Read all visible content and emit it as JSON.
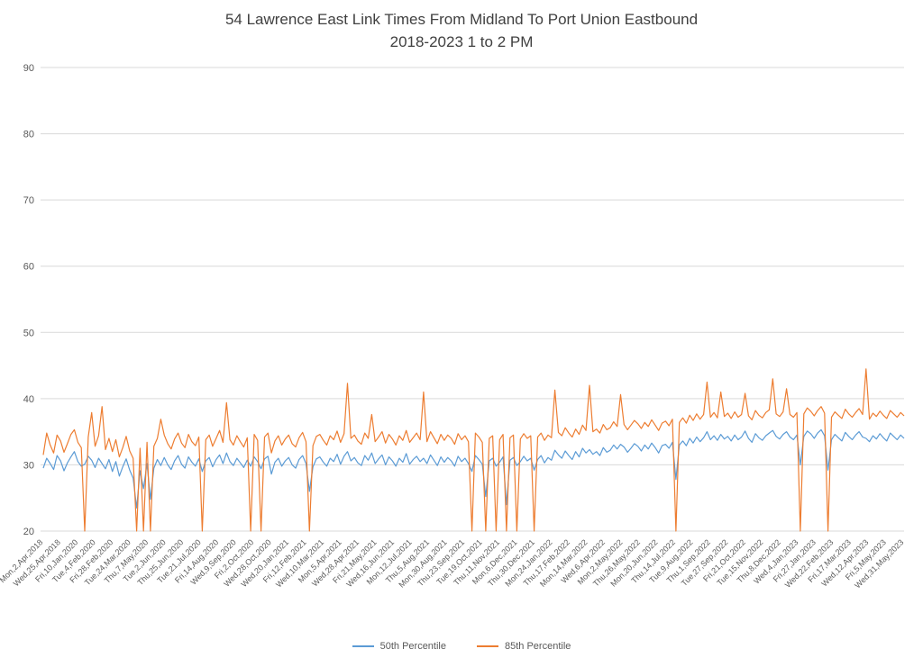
{
  "chart_data": {
    "type": "line",
    "title": "54 Lawrence East Link Times From Midland To Port Union Eastbound",
    "subtitle": "2018-2023 1 to 2 PM",
    "xlabel": "",
    "ylabel": "",
    "ylim": [
      20,
      90
    ],
    "yticks": [
      20,
      30,
      40,
      50,
      60,
      70,
      80,
      90
    ],
    "grid": true,
    "legend_position": "bottom",
    "colors": {
      "p50": "#5B9BD5",
      "p85": "#ED7D31",
      "gridline": "#D9D9D9",
      "axis_text": "#595959",
      "title_text": "#404040"
    },
    "x_tick_labels": [
      "Mon,2,Apr,2018",
      "Wed,25,Apr,2018",
      "Fri,10,Jan,2020",
      "Tue,4,Feb,2020",
      "Fri,28,Feb,2020",
      "Tue,24,Mar,2020",
      "Thu,7,May,2020",
      "Tue,2,Jun,2020",
      "Thu,25,Jun,2020",
      "Tue,21,Jul,2020",
      "Fri,14,Aug,2020",
      "Wed,9,Sep,2020",
      "Fri,2,Oct,2020",
      "Wed,28,Oct,2020",
      "Wed,20,Jan,2021",
      "Fri,12,Feb,2021",
      "Wed,10,Mar,2021",
      "Mon,5,Apr,2021",
      "Wed,28,Apr,2021",
      "Fri,21,May,2021",
      "Wed,16,Jun,2021",
      "Mon,12,Jul,2021",
      "Thu,5,Aug,2021",
      "Mon,30,Aug,2021",
      "Thu,23,Sep,2021",
      "Tue,19,Oct,2021",
      "Thu,11,Nov,2021",
      "Mon,6,Dec,2021",
      "Thu,30,Dec,2021",
      "Mon,24,Jan,2022",
      "Thu,17,Feb,2022",
      "Mon,14,Mar,2022",
      "Wed,6,Apr,2022",
      "Mon,2,May,2022",
      "Thu,26,May,2022",
      "Mon,20,Jun,2022",
      "Thu,14,Jul,2022",
      "Tue,9,Aug,2022",
      "Thu,1,Sep,2022",
      "Tue,27,Sep,2022",
      "Fri,21,Oct,2022",
      "Tue,15,Nov,2022",
      "Thu,8,Dec,2022",
      "Wed,4,Jan,2023",
      "Fri,27,Jan,2023",
      "Wed,22,Feb,2023",
      "Fri,17,Mar,2023",
      "Wed,12,Apr,2023",
      "Fri,5,May,2023",
      "Wed,31,May,2023"
    ],
    "series": [
      {
        "name": "50th Percentile",
        "color_key": "p50",
        "values": [
          29.5,
          31.0,
          30.2,
          29.3,
          31.4,
          30.6,
          29.1,
          30.3,
          31.2,
          32.0,
          30.5,
          29.8,
          30.1,
          31.3,
          30.7,
          29.6,
          31.0,
          30.2,
          29.4,
          30.8,
          29.0,
          30.5,
          28.3,
          29.7,
          30.9,
          29.2,
          28.0,
          23.5,
          29.1,
          26.4,
          30.2,
          24.8,
          29.5,
          30.8,
          29.9,
          31.1,
          30.0,
          29.3,
          30.6,
          31.4,
          30.1,
          29.5,
          31.2,
          30.4,
          29.8,
          30.9,
          29.0,
          30.6,
          31.1,
          29.7,
          30.8,
          31.5,
          30.2,
          31.8,
          30.5,
          29.9,
          31.0,
          30.3,
          29.6,
          30.7,
          29.8,
          31.2,
          30.5,
          29.4,
          30.9,
          31.3,
          28.6,
          30.4,
          31.0,
          29.8,
          30.6,
          31.1,
          30.0,
          29.5,
          30.8,
          31.4,
          30.2,
          26.0,
          29.7,
          30.9,
          31.2,
          30.4,
          29.8,
          31.0,
          30.5,
          31.6,
          30.1,
          31.3,
          32.0,
          30.6,
          31.1,
          30.3,
          29.9,
          31.4,
          30.7,
          31.8,
          30.2,
          30.9,
          31.5,
          30.0,
          31.2,
          30.6,
          29.8,
          31.0,
          30.4,
          31.7,
          30.1,
          30.8,
          31.3,
          30.5,
          31.0,
          30.2,
          31.5,
          30.7,
          29.9,
          31.2,
          30.4,
          31.1,
          30.6,
          29.8,
          31.3,
          30.5,
          31.0,
          30.2,
          29.0,
          31.4,
          30.8,
          30.1,
          25.2,
          30.6,
          31.0,
          29.8,
          30.4,
          31.2,
          24.0,
          30.7,
          31.1,
          29.9,
          30.5,
          31.3,
          30.6,
          31.0,
          29.2,
          30.8,
          31.4,
          30.3,
          31.1,
          30.7,
          32.2,
          31.5,
          31.0,
          32.1,
          31.4,
          30.8,
          32.0,
          31.2,
          32.5,
          31.8,
          32.3,
          31.6,
          32.0,
          31.4,
          32.6,
          31.9,
          32.2,
          33.0,
          32.4,
          33.1,
          32.7,
          31.9,
          32.5,
          33.2,
          32.8,
          32.1,
          33.0,
          32.4,
          33.3,
          32.6,
          31.8,
          32.9,
          33.1,
          32.5,
          33.4,
          27.8,
          33.0,
          33.6,
          32.9,
          34.0,
          33.3,
          34.2,
          33.5,
          34.1,
          35.0,
          33.8,
          34.4,
          33.7,
          34.6,
          33.9,
          34.3,
          33.6,
          34.5,
          33.8,
          34.2,
          35.1,
          34.0,
          33.4,
          34.7,
          34.1,
          33.7,
          34.4,
          34.8,
          35.2,
          34.3,
          33.9,
          34.6,
          35.0,
          34.2,
          33.8,
          34.5,
          30.0,
          34.3,
          35.1,
          34.7,
          34.0,
          34.8,
          35.3,
          34.4,
          29.2,
          33.8,
          34.6,
          34.1,
          33.6,
          34.9,
          34.3,
          33.8,
          34.5,
          35.0,
          34.2,
          34.0,
          33.5,
          34.4,
          33.9,
          34.7,
          34.1,
          33.6,
          34.8,
          34.3,
          33.8,
          34.5,
          34.0
        ]
      },
      {
        "name": "85th Percentile",
        "color_key": "p85",
        "values": [
          31.5,
          34.8,
          33.0,
          31.8,
          34.5,
          33.6,
          31.9,
          33.2,
          34.6,
          35.3,
          33.4,
          32.6,
          20.0,
          34.2,
          37.9,
          32.8,
          34.4,
          38.8,
          32.3,
          34.0,
          32.0,
          33.8,
          31.2,
          32.6,
          34.3,
          32.1,
          31.0,
          20.0,
          32.5,
          20.0,
          33.4,
          20.0,
          32.8,
          34.0,
          36.9,
          34.5,
          33.2,
          32.4,
          33.9,
          34.8,
          33.3,
          32.6,
          34.6,
          33.5,
          32.9,
          34.2,
          20.0,
          33.8,
          34.5,
          32.8,
          34.0,
          35.2,
          33.4,
          39.4,
          33.8,
          33.0,
          34.4,
          33.5,
          32.7,
          34.1,
          20.0,
          34.6,
          33.7,
          20.0,
          34.2,
          34.8,
          31.8,
          33.6,
          34.4,
          33.0,
          33.9,
          34.5,
          33.2,
          32.7,
          34.1,
          34.9,
          33.5,
          20.0,
          32.9,
          34.3,
          34.6,
          33.7,
          33.0,
          34.4,
          33.8,
          35.1,
          33.4,
          34.7,
          42.3,
          34.0,
          34.5,
          33.6,
          33.1,
          34.8,
          34.0,
          37.6,
          33.5,
          34.2,
          35.0,
          33.3,
          34.6,
          33.9,
          33.0,
          34.4,
          33.7,
          35.2,
          33.4,
          34.1,
          34.8,
          33.8,
          41.0,
          33.5,
          35.0,
          34.1,
          33.2,
          34.6,
          33.7,
          34.5,
          34.0,
          33.1,
          34.7,
          33.8,
          34.4,
          33.5,
          20.0,
          34.8,
          34.2,
          33.4,
          20.0,
          34.0,
          34.4,
          20.0,
          33.8,
          34.6,
          20.0,
          34.1,
          34.5,
          20.0,
          33.9,
          34.7,
          34.0,
          34.4,
          20.0,
          34.2,
          34.8,
          33.7,
          34.5,
          34.1,
          41.3,
          34.9,
          34.4,
          35.6,
          34.8,
          34.2,
          35.4,
          34.6,
          36.0,
          35.2,
          42.0,
          35.0,
          35.4,
          34.8,
          36.1,
          35.3,
          35.6,
          36.5,
          35.8,
          40.6,
          36.1,
          35.3,
          36.0,
          36.7,
          36.2,
          35.5,
          36.4,
          35.8,
          36.8,
          36.0,
          35.2,
          36.3,
          36.6,
          35.9,
          36.9,
          20.0,
          36.4,
          37.1,
          36.3,
          37.5,
          36.7,
          37.7,
          36.9,
          37.6,
          42.5,
          37.2,
          37.9,
          37.1,
          41.0,
          37.3,
          37.8,
          37.0,
          38.0,
          37.2,
          37.6,
          40.8,
          37.4,
          36.8,
          38.2,
          37.5,
          37.1,
          37.9,
          38.3,
          43.0,
          37.7,
          37.3,
          38.0,
          41.5,
          37.6,
          37.2,
          37.9,
          20.0,
          37.7,
          38.6,
          38.1,
          37.4,
          38.2,
          38.8,
          37.8,
          20.0,
          37.2,
          38.0,
          37.5,
          37.0,
          38.4,
          37.7,
          37.2,
          37.9,
          38.5,
          37.6,
          44.5,
          36.9,
          37.8,
          37.3,
          38.1,
          37.5,
          37.0,
          38.2,
          37.7,
          37.2,
          37.9,
          37.4
        ]
      }
    ]
  }
}
